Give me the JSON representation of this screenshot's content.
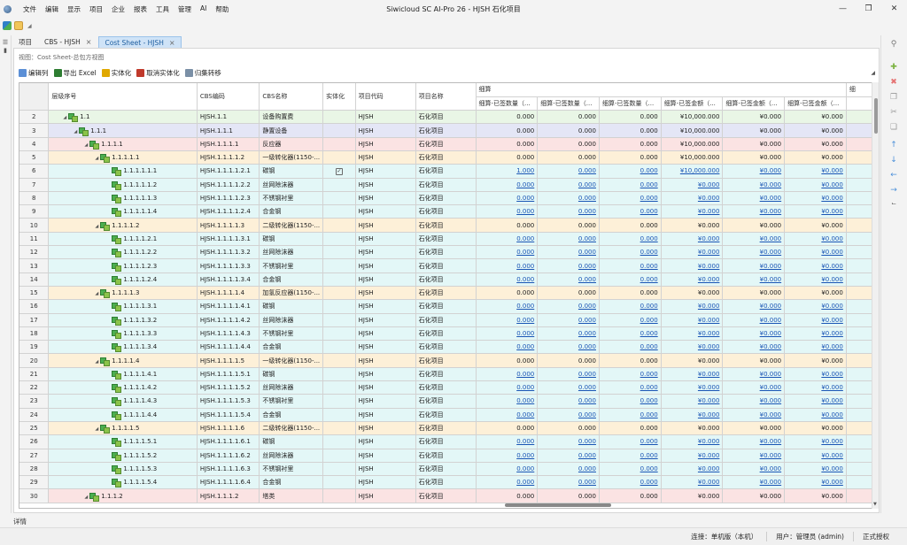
{
  "app": {
    "title": "Siwicloud SC AI-Pro 26 - HJSH 石化项目",
    "menu": [
      "文件",
      "编辑",
      "显示",
      "项目",
      "企业",
      "报表",
      "工具",
      "管理",
      "AI",
      "帮助"
    ]
  },
  "tabs": [
    {
      "label": "项目",
      "closable": false
    },
    {
      "label": "CBS - HJSH",
      "closable": true
    },
    {
      "label": "Cost Sheet - HJSH",
      "closable": true,
      "active": true
    }
  ],
  "view_label": "视图：Cost Sheet-总包方视图",
  "toolbar": {
    "edit_columns": "编辑列",
    "export_excel": "导出 Excel",
    "materialize": "实体化",
    "unmaterialize": "取消实体化",
    "rollup": "归集转移"
  },
  "table": {
    "group_header": "细算",
    "columns": [
      "层级序号",
      "CBS编码",
      "CBS名称",
      "实体化",
      "项目代码",
      "项目名称",
      "细算-已签数量（...",
      "细算-已签数量（...",
      "细算-已签数量（...",
      "细算-已签金额（...",
      "细算-已签金额（...",
      "细算-已签金额（...",
      "细"
    ],
    "rows": [
      {
        "n": "2",
        "lvl": 1,
        "tri": true,
        "lbl": "1.1",
        "code": "HJSH.1.1",
        "name": "设备购置费",
        "mat": false,
        "pcode": "HJSH",
        "pname": "石化项目",
        "v": [
          "0.000",
          "0.000",
          "0.000",
          "¥10,000.000",
          "¥0.000",
          "¥0.000"
        ],
        "color": "#e9f6e6",
        "link": false
      },
      {
        "n": "3",
        "lvl": 2,
        "tri": true,
        "lbl": "1.1.1",
        "code": "HJSH.1.1.1",
        "name": "静置设备",
        "mat": false,
        "pcode": "HJSH",
        "pname": "石化项目",
        "v": [
          "0.000",
          "0.000",
          "0.000",
          "¥10,000.000",
          "¥0.000",
          "¥0.000"
        ],
        "color": "#e4e6f6",
        "link": false
      },
      {
        "n": "4",
        "lvl": 3,
        "tri": true,
        "lbl": "1.1.1.1",
        "code": "HJSH.1.1.1.1",
        "name": "反应器",
        "mat": false,
        "pcode": "HJSH",
        "pname": "石化项目",
        "v": [
          "0.000",
          "0.000",
          "0.000",
          "¥10,000.000",
          "¥0.000",
          "¥0.000"
        ],
        "color": "#fbe3e3",
        "link": false
      },
      {
        "n": "5",
        "lvl": 4,
        "tri": true,
        "lbl": "1.1.1.1.1",
        "code": "HJSH.1.1.1.1.2",
        "name": "一级转化器(1150-...",
        "mat": false,
        "pcode": "HJSH",
        "pname": "石化项目",
        "v": [
          "0.000",
          "0.000",
          "0.000",
          "¥10,000.000",
          "¥0.000",
          "¥0.000"
        ],
        "color": "#fdf0d8",
        "link": false
      },
      {
        "n": "6",
        "lvl": 5,
        "tri": false,
        "lbl": "1.1.1.1.1.1",
        "code": "HJSH.1.1.1.1.2.1",
        "name": "碳钢",
        "mat": true,
        "pcode": "HJSH",
        "pname": "石化项目",
        "v": [
          "1.000",
          "0.000",
          "0.000",
          "¥10,000.000",
          "¥0.000",
          "¥0.000"
        ],
        "color": "#e3f7f7",
        "link": true
      },
      {
        "n": "7",
        "lvl": 5,
        "tri": false,
        "lbl": "1.1.1.1.1.2",
        "code": "HJSH.1.1.1.1.2.2",
        "name": "丝网除沫器",
        "mat": false,
        "pcode": "HJSH",
        "pname": "石化项目",
        "v": [
          "0.000",
          "0.000",
          "0.000",
          "¥0.000",
          "¥0.000",
          "¥0.000"
        ],
        "color": "#e3f7f7",
        "link": true
      },
      {
        "n": "8",
        "lvl": 5,
        "tri": false,
        "lbl": "1.1.1.1.1.3",
        "code": "HJSH.1.1.1.1.2.3",
        "name": "不锈钢衬里",
        "mat": false,
        "pcode": "HJSH",
        "pname": "石化项目",
        "v": [
          "0.000",
          "0.000",
          "0.000",
          "¥0.000",
          "¥0.000",
          "¥0.000"
        ],
        "color": "#e3f7f7",
        "link": true
      },
      {
        "n": "9",
        "lvl": 5,
        "tri": false,
        "lbl": "1.1.1.1.1.4",
        "code": "HJSH.1.1.1.1.2.4",
        "name": "合金钢",
        "mat": false,
        "pcode": "HJSH",
        "pname": "石化项目",
        "v": [
          "0.000",
          "0.000",
          "0.000",
          "¥0.000",
          "¥0.000",
          "¥0.000"
        ],
        "color": "#e3f7f7",
        "link": true
      },
      {
        "n": "10",
        "lvl": 4,
        "tri": true,
        "lbl": "1.1.1.1.2",
        "code": "HJSH.1.1.1.1.3",
        "name": "二级转化器(1150-...",
        "mat": false,
        "pcode": "HJSH",
        "pname": "石化项目",
        "v": [
          "0.000",
          "0.000",
          "0.000",
          "¥0.000",
          "¥0.000",
          "¥0.000"
        ],
        "color": "#fdf0d8",
        "link": false
      },
      {
        "n": "11",
        "lvl": 5,
        "tri": false,
        "lbl": "1.1.1.1.2.1",
        "code": "HJSH.1.1.1.1.3.1",
        "name": "碳钢",
        "mat": false,
        "pcode": "HJSH",
        "pname": "石化项目",
        "v": [
          "0.000",
          "0.000",
          "0.000",
          "¥0.000",
          "¥0.000",
          "¥0.000"
        ],
        "color": "#e3f7f7",
        "link": true
      },
      {
        "n": "12",
        "lvl": 5,
        "tri": false,
        "lbl": "1.1.1.1.2.2",
        "code": "HJSH.1.1.1.1.3.2",
        "name": "丝网除沫器",
        "mat": false,
        "pcode": "HJSH",
        "pname": "石化项目",
        "v": [
          "0.000",
          "0.000",
          "0.000",
          "¥0.000",
          "¥0.000",
          "¥0.000"
        ],
        "color": "#e3f7f7",
        "link": true
      },
      {
        "n": "13",
        "lvl": 5,
        "tri": false,
        "lbl": "1.1.1.1.2.3",
        "code": "HJSH.1.1.1.1.3.3",
        "name": "不锈钢衬里",
        "mat": false,
        "pcode": "HJSH",
        "pname": "石化项目",
        "v": [
          "0.000",
          "0.000",
          "0.000",
          "¥0.000",
          "¥0.000",
          "¥0.000"
        ],
        "color": "#e3f7f7",
        "link": true
      },
      {
        "n": "14",
        "lvl": 5,
        "tri": false,
        "lbl": "1.1.1.1.2.4",
        "code": "HJSH.1.1.1.1.3.4",
        "name": "合金钢",
        "mat": false,
        "pcode": "HJSH",
        "pname": "石化项目",
        "v": [
          "0.000",
          "0.000",
          "0.000",
          "¥0.000",
          "¥0.000",
          "¥0.000"
        ],
        "color": "#e3f7f7",
        "link": true
      },
      {
        "n": "15",
        "lvl": 4,
        "tri": true,
        "lbl": "1.1.1.1.3",
        "code": "HJSH.1.1.1.1.4",
        "name": "加氢反应器(1150-...",
        "mat": false,
        "pcode": "HJSH",
        "pname": "石化项目",
        "v": [
          "0.000",
          "0.000",
          "0.000",
          "¥0.000",
          "¥0.000",
          "¥0.000"
        ],
        "color": "#fdf0d8",
        "link": false
      },
      {
        "n": "16",
        "lvl": 5,
        "tri": false,
        "lbl": "1.1.1.1.3.1",
        "code": "HJSH.1.1.1.1.4.1",
        "name": "碳钢",
        "mat": false,
        "pcode": "HJSH",
        "pname": "石化项目",
        "v": [
          "0.000",
          "0.000",
          "0.000",
          "¥0.000",
          "¥0.000",
          "¥0.000"
        ],
        "color": "#e3f7f7",
        "link": true
      },
      {
        "n": "17",
        "lvl": 5,
        "tri": false,
        "lbl": "1.1.1.1.3.2",
        "code": "HJSH.1.1.1.1.4.2",
        "name": "丝网除沫器",
        "mat": false,
        "pcode": "HJSH",
        "pname": "石化项目",
        "v": [
          "0.000",
          "0.000",
          "0.000",
          "¥0.000",
          "¥0.000",
          "¥0.000"
        ],
        "color": "#e3f7f7",
        "link": true
      },
      {
        "n": "18",
        "lvl": 5,
        "tri": false,
        "lbl": "1.1.1.1.3.3",
        "code": "HJSH.1.1.1.1.4.3",
        "name": "不锈钢衬里",
        "mat": false,
        "pcode": "HJSH",
        "pname": "石化项目",
        "v": [
          "0.000",
          "0.000",
          "0.000",
          "¥0.000",
          "¥0.000",
          "¥0.000"
        ],
        "color": "#e3f7f7",
        "link": true
      },
      {
        "n": "19",
        "lvl": 5,
        "tri": false,
        "lbl": "1.1.1.1.3.4",
        "code": "HJSH.1.1.1.1.4.4",
        "name": "合金钢",
        "mat": false,
        "pcode": "HJSH",
        "pname": "石化项目",
        "v": [
          "0.000",
          "0.000",
          "0.000",
          "¥0.000",
          "¥0.000",
          "¥0.000"
        ],
        "color": "#e3f7f7",
        "link": true
      },
      {
        "n": "20",
        "lvl": 4,
        "tri": true,
        "lbl": "1.1.1.1.4",
        "code": "HJSH.1.1.1.1.5",
        "name": "一级转化器(1150-...",
        "mat": false,
        "pcode": "HJSH",
        "pname": "石化项目",
        "v": [
          "0.000",
          "0.000",
          "0.000",
          "¥0.000",
          "¥0.000",
          "¥0.000"
        ],
        "color": "#fdf0d8",
        "link": false
      },
      {
        "n": "21",
        "lvl": 5,
        "tri": false,
        "lbl": "1.1.1.1.4.1",
        "code": "HJSH.1.1.1.1.5.1",
        "name": "碳钢",
        "mat": false,
        "pcode": "HJSH",
        "pname": "石化项目",
        "v": [
          "0.000",
          "0.000",
          "0.000",
          "¥0.000",
          "¥0.000",
          "¥0.000"
        ],
        "color": "#e3f7f7",
        "link": true
      },
      {
        "n": "22",
        "lvl": 5,
        "tri": false,
        "lbl": "1.1.1.1.4.2",
        "code": "HJSH.1.1.1.1.5.2",
        "name": "丝网除沫器",
        "mat": false,
        "pcode": "HJSH",
        "pname": "石化项目",
        "v": [
          "0.000",
          "0.000",
          "0.000",
          "¥0.000",
          "¥0.000",
          "¥0.000"
        ],
        "color": "#e3f7f7",
        "link": true
      },
      {
        "n": "23",
        "lvl": 5,
        "tri": false,
        "lbl": "1.1.1.1.4.3",
        "code": "HJSH.1.1.1.1.5.3",
        "name": "不锈钢衬里",
        "mat": false,
        "pcode": "HJSH",
        "pname": "石化项目",
        "v": [
          "0.000",
          "0.000",
          "0.000",
          "¥0.000",
          "¥0.000",
          "¥0.000"
        ],
        "color": "#e3f7f7",
        "link": true
      },
      {
        "n": "24",
        "lvl": 5,
        "tri": false,
        "lbl": "1.1.1.1.4.4",
        "code": "HJSH.1.1.1.1.5.4",
        "name": "合金钢",
        "mat": false,
        "pcode": "HJSH",
        "pname": "石化项目",
        "v": [
          "0.000",
          "0.000",
          "0.000",
          "¥0.000",
          "¥0.000",
          "¥0.000"
        ],
        "color": "#e3f7f7",
        "link": true
      },
      {
        "n": "25",
        "lvl": 4,
        "tri": true,
        "lbl": "1.1.1.1.5",
        "code": "HJSH.1.1.1.1.6",
        "name": "二级转化器(1150-...",
        "mat": false,
        "pcode": "HJSH",
        "pname": "石化项目",
        "v": [
          "0.000",
          "0.000",
          "0.000",
          "¥0.000",
          "¥0.000",
          "¥0.000"
        ],
        "color": "#fdf0d8",
        "link": false
      },
      {
        "n": "26",
        "lvl": 5,
        "tri": false,
        "lbl": "1.1.1.1.5.1",
        "code": "HJSH.1.1.1.1.6.1",
        "name": "碳钢",
        "mat": false,
        "pcode": "HJSH",
        "pname": "石化项目",
        "v": [
          "0.000",
          "0.000",
          "0.000",
          "¥0.000",
          "¥0.000",
          "¥0.000"
        ],
        "color": "#e3f7f7",
        "link": true
      },
      {
        "n": "27",
        "lvl": 5,
        "tri": false,
        "lbl": "1.1.1.1.5.2",
        "code": "HJSH.1.1.1.1.6.2",
        "name": "丝网除沫器",
        "mat": false,
        "pcode": "HJSH",
        "pname": "石化项目",
        "v": [
          "0.000",
          "0.000",
          "0.000",
          "¥0.000",
          "¥0.000",
          "¥0.000"
        ],
        "color": "#e3f7f7",
        "link": true
      },
      {
        "n": "28",
        "lvl": 5,
        "tri": false,
        "lbl": "1.1.1.1.5.3",
        "code": "HJSH.1.1.1.1.6.3",
        "name": "不锈钢衬里",
        "mat": false,
        "pcode": "HJSH",
        "pname": "石化项目",
        "v": [
          "0.000",
          "0.000",
          "0.000",
          "¥0.000",
          "¥0.000",
          "¥0.000"
        ],
        "color": "#e3f7f7",
        "link": true
      },
      {
        "n": "29",
        "lvl": 5,
        "tri": false,
        "lbl": "1.1.1.1.5.4",
        "code": "HJSH.1.1.1.1.6.4",
        "name": "合金钢",
        "mat": false,
        "pcode": "HJSH",
        "pname": "石化项目",
        "v": [
          "0.000",
          "0.000",
          "0.000",
          "¥0.000",
          "¥0.000",
          "¥0.000"
        ],
        "color": "#e3f7f7",
        "link": true
      },
      {
        "n": "30",
        "lvl": 3,
        "tri": true,
        "lbl": "1.1.1.2",
        "code": "HJSH.1.1.1.2",
        "name": "塔类",
        "mat": false,
        "pcode": "HJSH",
        "pname": "石化项目",
        "v": [
          "0.000",
          "0.000",
          "0.000",
          "¥0.000",
          "¥0.000",
          "¥0.000"
        ],
        "color": "#fbe3e3",
        "link": false
      }
    ]
  },
  "details_label": "详情",
  "status": {
    "connection": "连接：单机版（本机）",
    "user": "用户：管理员 (admin)",
    "license": "正式授权"
  },
  "colors": {
    "active_tab_bg": "#cfe3f7",
    "link": "#1a55b5"
  }
}
